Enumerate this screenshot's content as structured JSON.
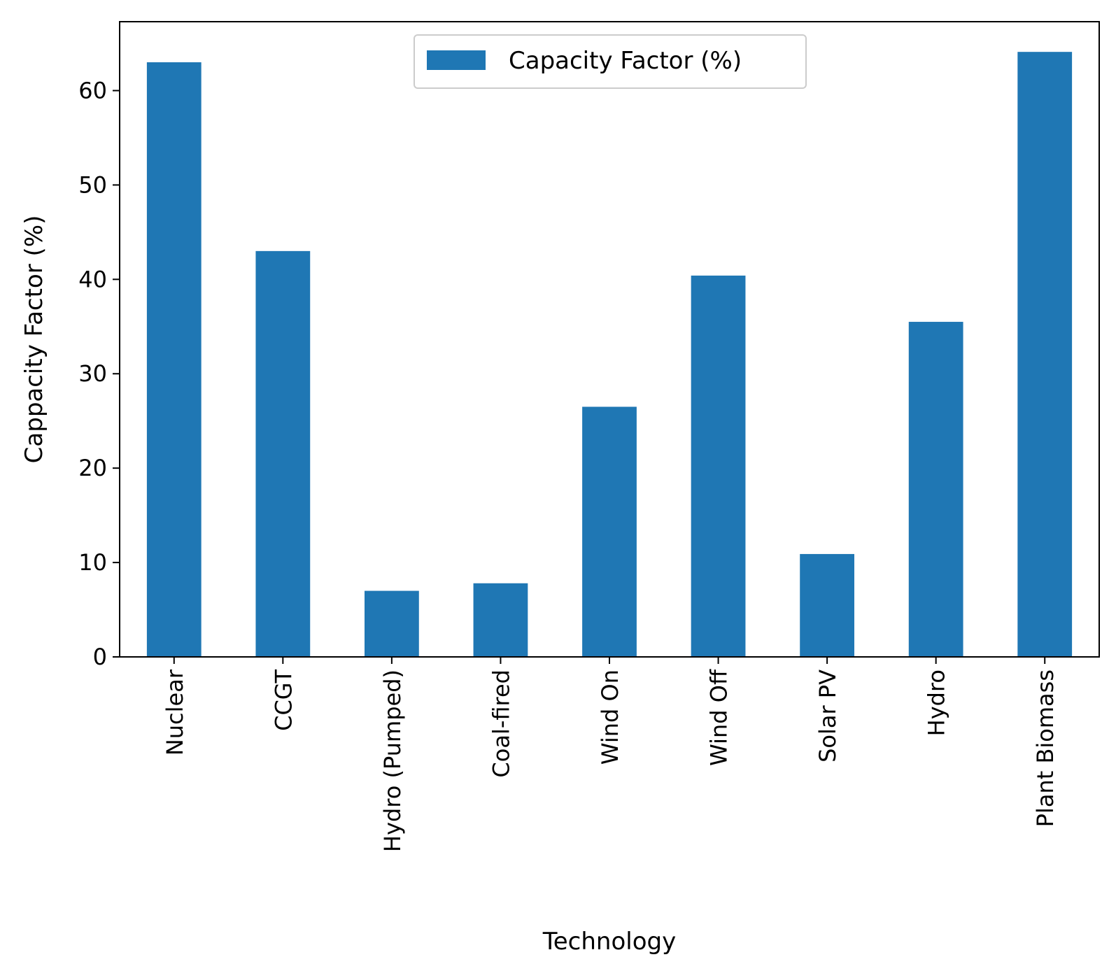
{
  "chart_data": {
    "type": "bar",
    "categories": [
      "Nuclear",
      "CCGT",
      "Hydro (Pumped)",
      "Coal-fired",
      "Wind On",
      "Wind Off",
      "Solar PV",
      "Hydro",
      "Plant Biomass"
    ],
    "series": [
      {
        "name": "Capacity Factor (%)",
        "values": [
          63.0,
          43.0,
          7.0,
          7.8,
          26.5,
          40.4,
          10.9,
          35.5,
          64.1
        ],
        "color": "#1f77b4"
      }
    ],
    "xlabel": "Technology",
    "ylabel": "Cappacity Factor (%)",
    "ylim": [
      0,
      67.3
    ],
    "yticks": [
      0,
      10,
      20,
      30,
      40,
      50,
      60
    ],
    "grid": false,
    "legend_position": "top-center"
  }
}
